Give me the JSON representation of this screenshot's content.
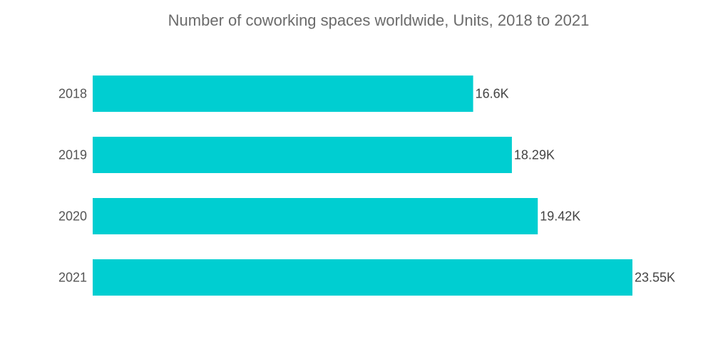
{
  "chart_data": {
    "type": "bar",
    "orientation": "horizontal",
    "title": "Number of coworking spaces worldwide, Units, 2018 to 2021",
    "categories": [
      "2018",
      "2019",
      "2020",
      "2021"
    ],
    "values": [
      16.6,
      18.29,
      19.42,
      23.55
    ],
    "value_labels": [
      "16.6K",
      "18.29K",
      "19.42K",
      "23.55K"
    ],
    "unit": "K",
    "xlabel": "",
    "ylabel": "",
    "xlim": [
      0,
      23.55
    ],
    "grid": false,
    "legend": "none",
    "bar_color": "#00ced1"
  }
}
